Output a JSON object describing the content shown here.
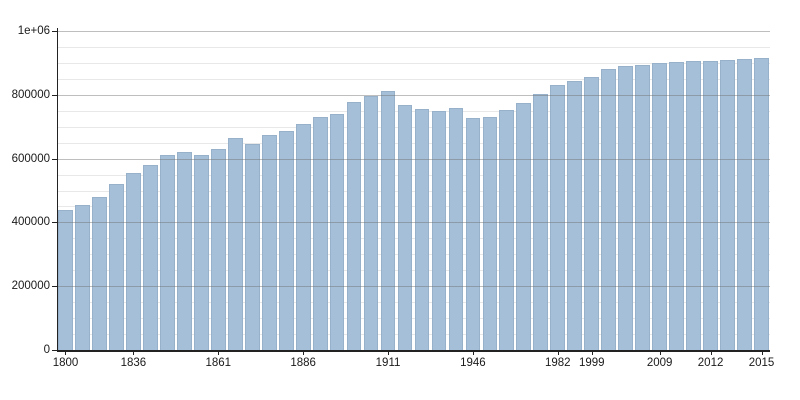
{
  "chart_data": {
    "type": "bar",
    "title": "",
    "xlabel": "",
    "ylabel": "",
    "x": [
      1800,
      1806,
      1821,
      1831,
      1836,
      1841,
      1846,
      1851,
      1856,
      1861,
      1866,
      1872,
      1876,
      1881,
      1886,
      1891,
      1896,
      1901,
      1906,
      1911,
      1921,
      1926,
      1931,
      1936,
      1946,
      1954,
      1962,
      1968,
      1975,
      1982,
      1990,
      1999,
      2006,
      2007,
      2008,
      2009,
      2010,
      2011,
      2012,
      2013,
      2014,
      2015
    ],
    "values": [
      440000,
      454000,
      480000,
      520000,
      555000,
      580000,
      612000,
      622000,
      610000,
      630000,
      664000,
      645000,
      673000,
      687000,
      710000,
      731000,
      741000,
      777000,
      796000,
      813000,
      768000,
      756000,
      748000,
      760000,
      727000,
      729000,
      753000,
      774000,
      803000,
      832000,
      843000,
      855000,
      880000,
      890000,
      892000,
      899000,
      903000,
      905000,
      906000,
      909000,
      911000,
      914000
    ],
    "ylim": [
      0,
      1000000
    ],
    "ytick_values": [
      0,
      200000,
      400000,
      600000,
      800000,
      1000000
    ],
    "ytick_labels": [
      "0",
      "200000",
      "400000",
      "600000",
      "800000",
      "1e+06"
    ],
    "minor_grid_step": 50000,
    "xtick_indices": [
      0,
      4,
      9,
      14,
      19,
      24,
      29,
      31,
      35,
      38,
      41
    ],
    "xtick_labels": [
      "1800",
      "1836",
      "1861",
      "1886",
      "1911",
      "1946",
      "1982",
      "1999",
      "2009",
      "2012",
      "2015"
    ],
    "grid_on": true,
    "legend": "none",
    "colors": {
      "bar_fill": "#a6bfd8",
      "bar_edge": "#97b1ca",
      "grid_minor": "#e8e8e8",
      "grid_major_over_bars": "rgba(110,110,110,0.45)",
      "axis": "#222222",
      "tick_text": "#1a1a1a",
      "background": "#ffffff"
    }
  }
}
